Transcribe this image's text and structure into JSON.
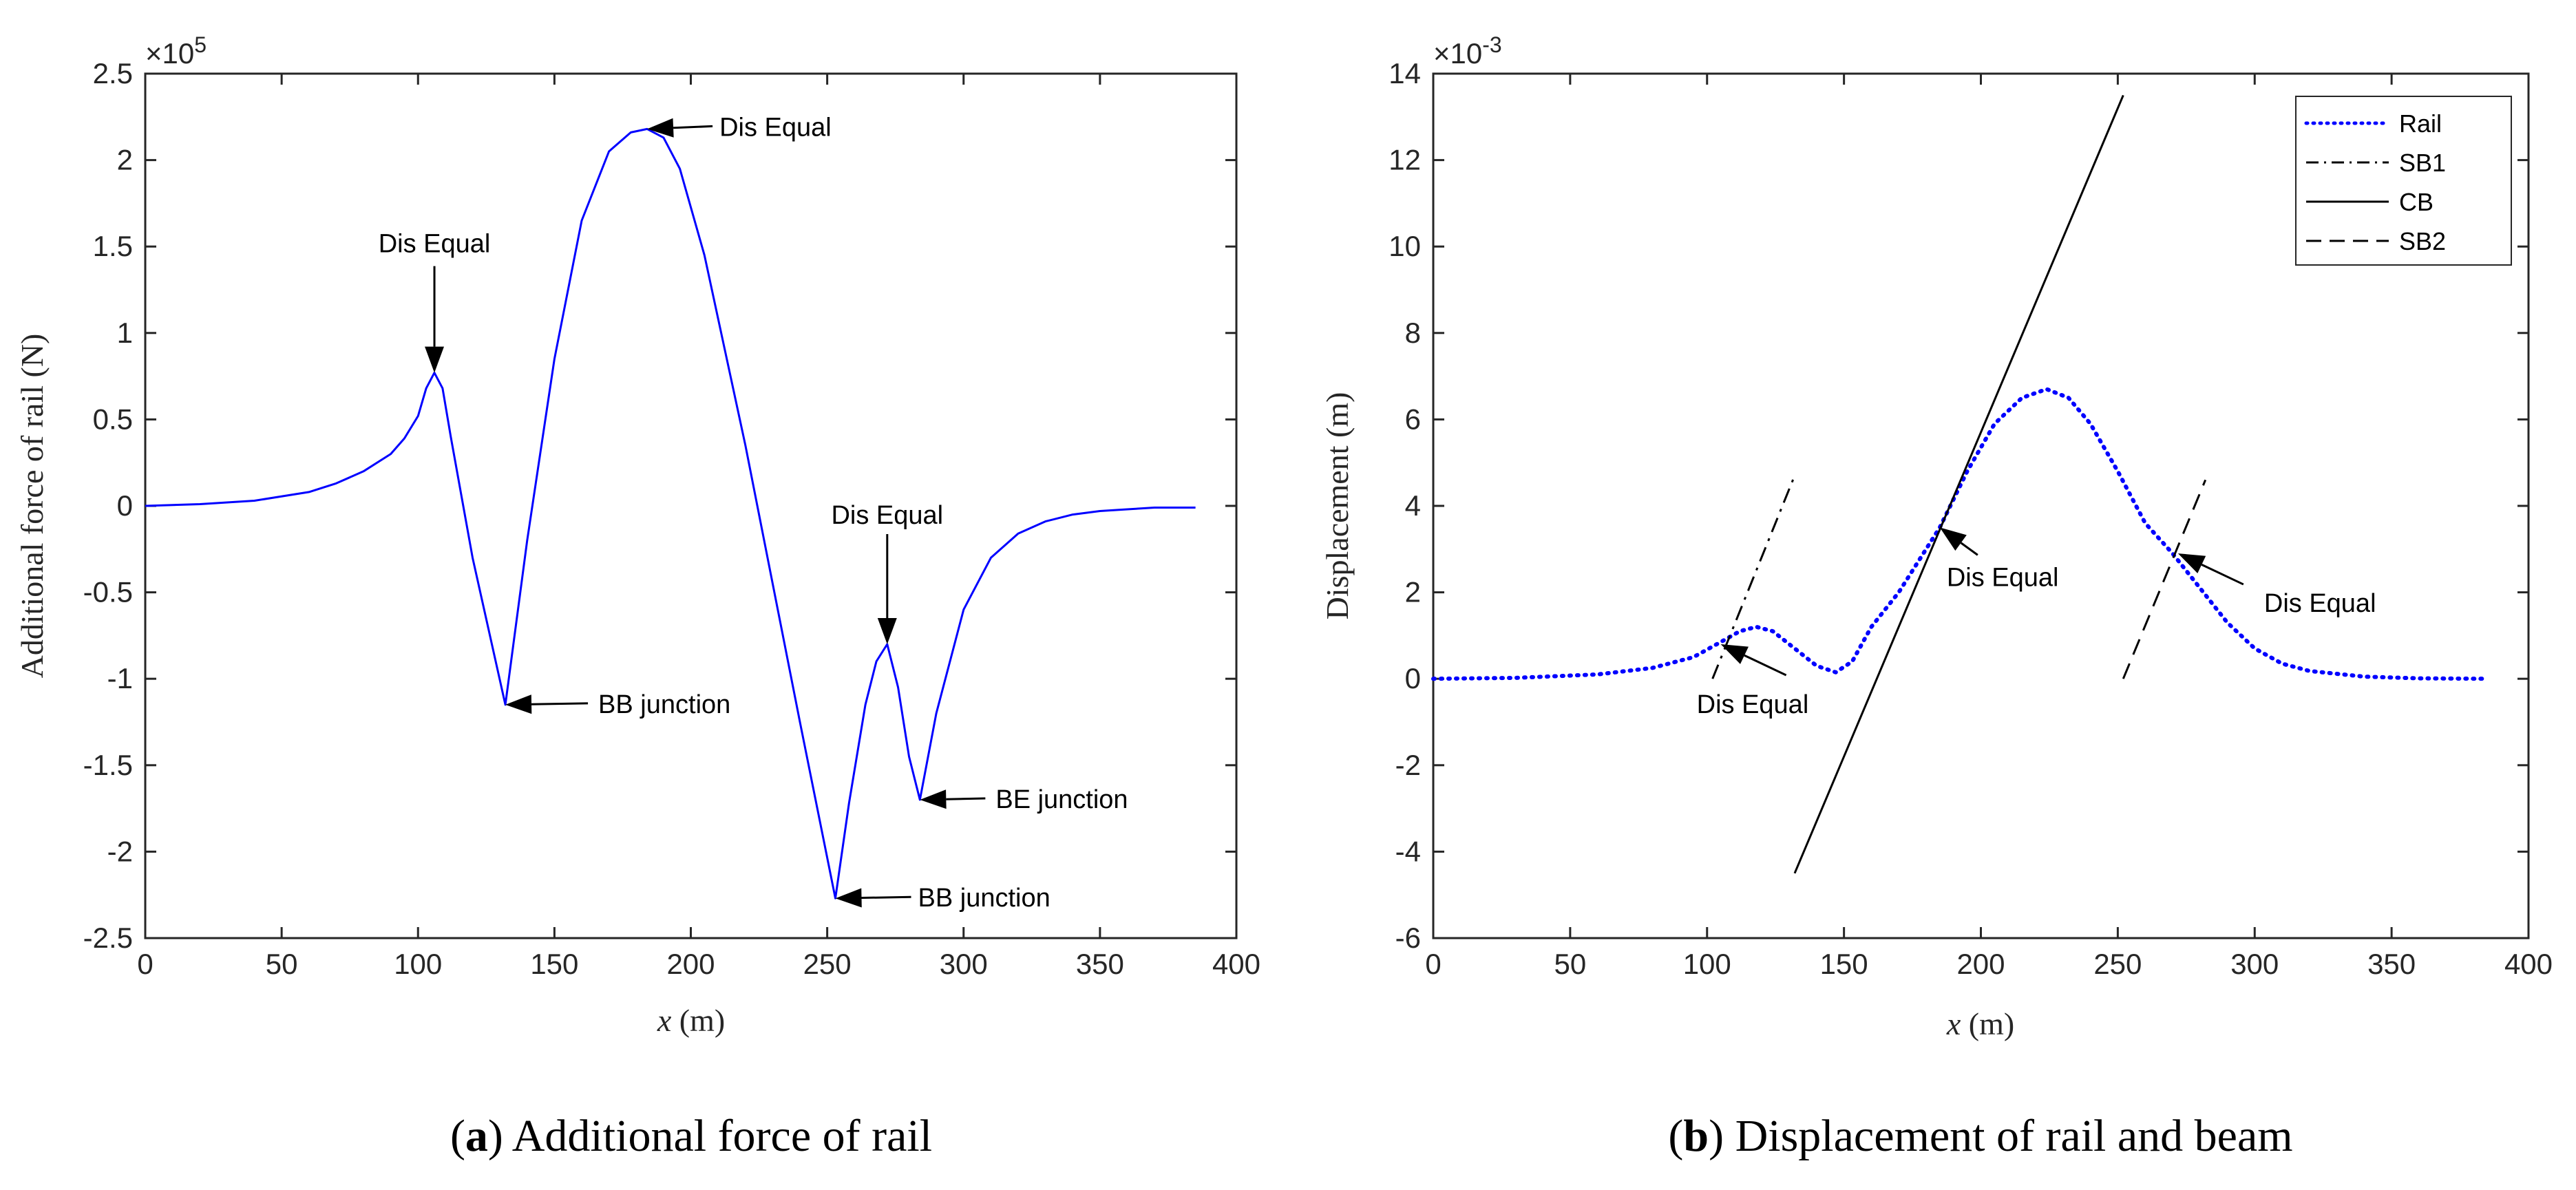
{
  "chart_data": [
    {
      "type": "line",
      "panel_letter": "a",
      "caption": "Additional force of rail",
      "xlabel_var": "x",
      "xlabel_unit": "(m)",
      "ylabel": "Additional force of rail (N)",
      "exponent_base": "×10",
      "exponent_power": "5",
      "xlim": [
        0,
        400
      ],
      "ylim": [
        -2.5,
        2.5
      ],
      "xticks": [
        0,
        50,
        100,
        150,
        200,
        250,
        300,
        350,
        400
      ],
      "xtick_labels": [
        "0",
        "50",
        "100",
        "150",
        "200",
        "250",
        "300",
        "350",
        "400"
      ],
      "yticks": [
        -2.5,
        -2,
        -1.5,
        -1,
        -0.5,
        0,
        0.5,
        1,
        1.5,
        2,
        2.5
      ],
      "ytick_labels": [
        "-2.5",
        "-2",
        "-1.5",
        "-1",
        "-0.5",
        "0",
        "0.5",
        "1",
        "1.5",
        "2",
        "2.5"
      ],
      "series": [
        {
          "name": "Additional force",
          "color": "#0000ff",
          "style": "solid",
          "x": [
            0,
            20,
            40,
            60,
            70,
            80,
            90,
            95,
            100,
            103,
            106,
            109,
            112,
            120,
            132,
            140,
            150,
            160,
            170,
            178,
            184,
            190,
            196,
            205,
            220,
            240,
            253,
            258,
            264,
            268,
            272,
            276,
            280,
            284,
            290,
            300,
            310,
            320,
            330,
            340,
            350,
            360,
            370,
            385
          ],
          "y": [
            0,
            0.01,
            0.03,
            0.08,
            0.13,
            0.2,
            0.3,
            0.39,
            0.52,
            0.68,
            0.77,
            0.68,
            0.4,
            -0.3,
            -1.15,
            -0.2,
            0.85,
            1.65,
            2.05,
            2.16,
            2.18,
            2.13,
            1.95,
            1.45,
            0.35,
            -1.25,
            -2.27,
            -1.72,
            -1.15,
            -0.9,
            -0.8,
            -1.05,
            -1.45,
            -1.7,
            -1.2,
            -0.6,
            -0.3,
            -0.16,
            -0.09,
            -0.05,
            -0.03,
            -0.02,
            -0.01,
            -0.01
          ]
        }
      ],
      "annotations": [
        {
          "text": "Dis Equal",
          "x": 106,
          "y": 0.77,
          "direction": "down"
        },
        {
          "text": "Dis Equal",
          "x": 184,
          "y": 2.18,
          "direction": "left"
        },
        {
          "text": "BB junction",
          "x": 132,
          "y": -1.15,
          "direction": "left"
        },
        {
          "text": "Dis Equal",
          "x": 272,
          "y": -0.8,
          "direction": "down"
        },
        {
          "text": "BE junction",
          "x": 284,
          "y": -1.7,
          "direction": "left"
        },
        {
          "text": "BB junction",
          "x": 253,
          "y": -2.27,
          "direction": "left"
        }
      ]
    },
    {
      "type": "line",
      "panel_letter": "b",
      "caption": "Displacement of rail and beam",
      "xlabel_var": "x",
      "xlabel_unit": "(m)",
      "ylabel": "Displacement (m)",
      "exponent_base": "×10",
      "exponent_power": "-3",
      "xlim": [
        0,
        400
      ],
      "ylim": [
        -6,
        14
      ],
      "xticks": [
        0,
        50,
        100,
        150,
        200,
        250,
        300,
        350,
        400
      ],
      "xtick_labels": [
        "0",
        "50",
        "100",
        "150",
        "200",
        "250",
        "300",
        "350",
        "400"
      ],
      "yticks": [
        -6,
        -4,
        -2,
        0,
        2,
        4,
        6,
        8,
        10,
        12,
        14
      ],
      "ytick_labels": [
        "-6",
        "-4",
        "-2",
        "0",
        "2",
        "4",
        "6",
        "8",
        "10",
        "12",
        "14"
      ],
      "legend_position": "top-right",
      "series": [
        {
          "name": "Rail",
          "color": "#0000ff",
          "style": "dotted",
          "x": [
            0,
            30,
            60,
            80,
            95,
            105,
            112,
            118,
            124,
            132,
            140,
            147,
            153,
            160,
            170,
            185,
            195,
            205,
            215,
            224,
            232,
            240,
            250,
            260,
            270,
            280,
            290,
            300,
            310,
            320,
            340,
            360,
            385
          ],
          "y": [
            0,
            0.02,
            0.1,
            0.25,
            0.5,
            0.85,
            1.1,
            1.2,
            1.1,
            0.7,
            0.3,
            0.15,
            0.4,
            1.2,
            2.0,
            3.5,
            4.8,
            5.9,
            6.5,
            6.7,
            6.5,
            5.9,
            4.8,
            3.6,
            2.9,
            2.1,
            1.3,
            0.7,
            0.35,
            0.18,
            0.05,
            0.01,
            0
          ]
        },
        {
          "name": "SB1",
          "color": "#000000",
          "style": "dashdot",
          "x": [
            102,
            132
          ],
          "y": [
            0,
            4.7
          ]
        },
        {
          "name": "CB",
          "color": "#000000",
          "style": "solid",
          "x": [
            132,
            252
          ],
          "y": [
            -4.5,
            13.5
          ]
        },
        {
          "name": "SB2",
          "color": "#000000",
          "style": "dashed",
          "x": [
            252,
            282
          ],
          "y": [
            0,
            4.6
          ]
        }
      ],
      "annotations": [
        {
          "text": "Dis Equal",
          "x": 105,
          "y": 0.8,
          "direction": "up-left"
        },
        {
          "text": "Dis Equal",
          "x": 185,
          "y": 3.5,
          "direction": "up-left"
        },
        {
          "text": "Dis Equal",
          "x": 272,
          "y": 2.9,
          "direction": "up-left"
        }
      ]
    }
  ]
}
